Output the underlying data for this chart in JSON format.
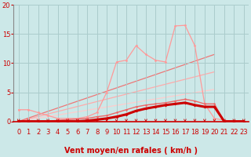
{
  "bg_color": "#cce8e8",
  "grid_color": "#aacccc",
  "x_label": "Vent moyen/en rafales ( km/h )",
  "xlim": [
    -0.5,
    23.5
  ],
  "ylim": [
    0,
    20
  ],
  "yticks": [
    0,
    5,
    10,
    15,
    20
  ],
  "xticks": [
    0,
    1,
    2,
    3,
    4,
    5,
    6,
    7,
    8,
    9,
    10,
    11,
    12,
    13,
    14,
    15,
    16,
    17,
    18,
    19,
    20,
    21,
    22,
    23
  ],
  "line_pink_jagged": {
    "x": [
      0,
      1,
      2,
      3,
      4,
      5,
      6,
      7,
      8,
      9,
      10,
      11,
      12,
      13,
      14,
      15,
      16,
      17,
      18,
      19,
      20,
      21,
      22,
      23
    ],
    "y": [
      2.0,
      2.0,
      1.5,
      1.0,
      0.5,
      0.5,
      0.5,
      0.8,
      1.5,
      5.0,
      10.2,
      10.5,
      13.0,
      11.5,
      10.5,
      10.2,
      16.4,
      16.5,
      13.0,
      3.0,
      0.5,
      0.2,
      0.0,
      0.0
    ],
    "color": "#ff9999",
    "lw": 0.9,
    "marker": "o",
    "ms": 2.0
  },
  "line_red_medium": {
    "x": [
      0,
      1,
      2,
      3,
      4,
      5,
      6,
      7,
      8,
      9,
      10,
      11,
      12,
      13,
      14,
      15,
      16,
      17,
      18,
      19,
      20,
      21,
      22,
      23
    ],
    "y": [
      0.0,
      0.0,
      0.0,
      0.0,
      0.2,
      0.3,
      0.4,
      0.5,
      0.8,
      1.0,
      1.5,
      2.0,
      2.5,
      2.8,
      3.0,
      3.2,
      3.5,
      3.8,
      3.5,
      3.0,
      3.0,
      0.0,
      0.0,
      0.0
    ],
    "color": "#ee6666",
    "lw": 1.0,
    "marker": "o",
    "ms": 1.8
  },
  "line_dark_red_thick": {
    "x": [
      0,
      1,
      2,
      3,
      4,
      5,
      6,
      7,
      8,
      9,
      10,
      11,
      12,
      13,
      14,
      15,
      16,
      17,
      18,
      19,
      20,
      21,
      22,
      23
    ],
    "y": [
      0.0,
      0.0,
      0.0,
      0.0,
      0.0,
      0.0,
      0.0,
      0.1,
      0.3,
      0.5,
      0.8,
      1.2,
      1.8,
      2.2,
      2.5,
      2.8,
      3.0,
      3.2,
      2.8,
      2.5,
      2.5,
      0.0,
      0.0,
      0.0
    ],
    "color": "#cc0000",
    "lw": 2.2,
    "marker": "D",
    "ms": 2.0
  },
  "straight1": {
    "x": [
      0,
      20
    ],
    "y": [
      0,
      11.5
    ],
    "color": "#ee7777",
    "lw": 0.9
  },
  "straight2": {
    "x": [
      0,
      20
    ],
    "y": [
      0,
      8.5
    ],
    "color": "#ffaaaa",
    "lw": 0.9
  },
  "straight3": {
    "x": [
      0,
      20
    ],
    "y": [
      0,
      5.5
    ],
    "color": "#ffcccc",
    "lw": 0.9
  },
  "arrow_color": "#cc0000",
  "label_color": "#cc0000",
  "label_fontsize": 7,
  "tick_fontsize": 6
}
